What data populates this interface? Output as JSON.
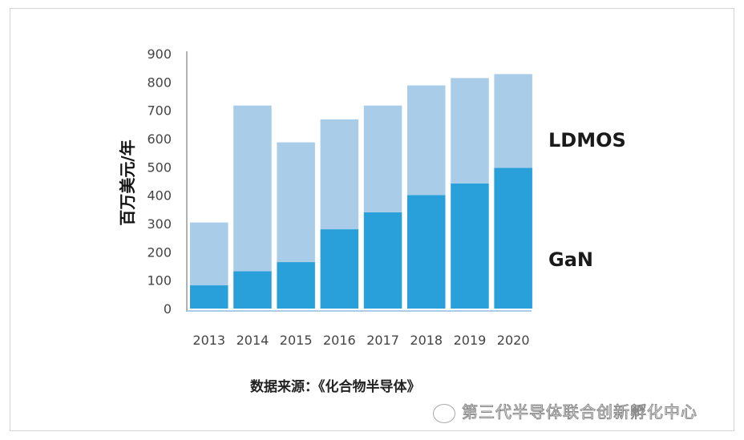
{
  "chart_data": {
    "type": "bar",
    "stacked": true,
    "categories": [
      "2013",
      "2014",
      "2015",
      "2016",
      "2017",
      "2018",
      "2019",
      "2020"
    ],
    "series": [
      {
        "name": "GaN",
        "values": [
          82,
          132,
          164,
          280,
          340,
          401,
          442,
          497
        ],
        "color": "#29a0d9"
      },
      {
        "name": "LDMOS",
        "values": [
          222,
          585,
          423,
          388,
          377,
          387,
          372,
          331
        ],
        "color": "#a9cce8"
      }
    ],
    "ylabel": "百万美元/年",
    "ylim": [
      0,
      900
    ],
    "yticks": [
      0,
      100,
      200,
      300,
      400,
      500,
      600,
      700,
      800,
      900
    ],
    "grid": false,
    "legend": "right, labels beside bars"
  },
  "source": "数据来源：《化合物半导体》",
  "watermark": "第三代半导体联合创新孵化中心"
}
